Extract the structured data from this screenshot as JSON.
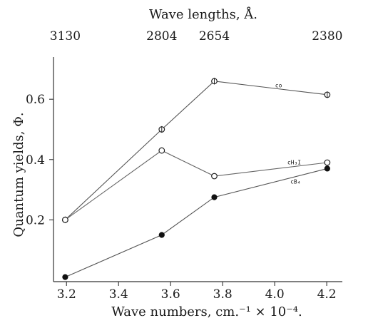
{
  "chart_data": {
    "type": "line",
    "xlabel": "Wave numbers, cm.⁻¹ × 10⁻⁴.",
    "ylabel": "Quantum yields, Φ.",
    "top_axis_label": "Wave lengths, Å.",
    "x_ticks": [
      "3.2",
      "3.4",
      "3.6",
      "3.8",
      "4.0",
      "4.2"
    ],
    "y_ticks": [
      "0.2",
      "0.4",
      "0.6"
    ],
    "top_ticks": [
      {
        "x": 3.195,
        "label": "3130"
      },
      {
        "x": 3.566,
        "label": "2804"
      },
      {
        "x": 3.768,
        "label": "2654"
      },
      {
        "x": 4.202,
        "label": "2380"
      }
    ],
    "xlim": [
      3.15,
      4.26
    ],
    "ylim": [
      -0.005,
      0.74
    ],
    "series": [
      {
        "name": "co",
        "marker": "circle-bar",
        "style": "solid",
        "x": [
          3.195,
          3.566,
          3.768,
          4.202
        ],
        "y": [
          0.2,
          0.5,
          0.66,
          0.615
        ]
      },
      {
        "name": "cH₃I",
        "marker": "open-circle",
        "style": "solid",
        "x": [
          3.195,
          3.566,
          3.768,
          4.202
        ],
        "y": [
          0.2,
          0.43,
          0.345,
          0.39
        ]
      },
      {
        "name": "cB₄",
        "marker": "filled-circle",
        "style": "solid",
        "x": [
          3.195,
          3.566,
          3.768,
          4.202
        ],
        "y": [
          0.01,
          0.15,
          0.275,
          0.37
        ]
      }
    ]
  }
}
